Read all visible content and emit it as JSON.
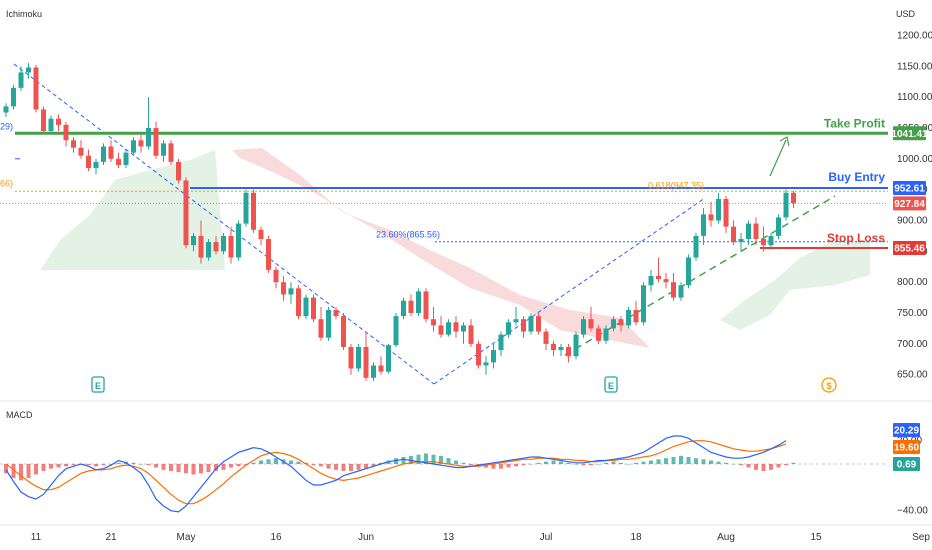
{
  "header": {
    "indicator": "Ichimoku",
    "currency": "USD"
  },
  "chart_data": {
    "type": "candlestick",
    "price_ticks": [
      "1200.00",
      "1150.00",
      "1100.00",
      "1050.00",
      "1000.00",
      "950.00",
      "900.00",
      "850.00",
      "800.00",
      "750.00",
      "700.00",
      "650.00"
    ],
    "price_tick_values": [
      1200,
      1150,
      1100,
      1050,
      1000,
      950,
      900,
      850,
      800,
      750,
      700,
      650
    ],
    "ylim": [
      622,
      1225
    ],
    "x_labels": [
      "11",
      "21",
      "May",
      "16",
      "Jun",
      "13",
      "Jul",
      "18",
      "Aug",
      "15",
      "Sep"
    ],
    "x_label_index": [
      4,
      14,
      24,
      36,
      48,
      59,
      72,
      84,
      96,
      108,
      122
    ],
    "candles": [
      [
        1075,
        1090,
        1068,
        1085
      ],
      [
        1085,
        1120,
        1080,
        1115
      ],
      [
        1115,
        1150,
        1110,
        1140
      ],
      [
        1140,
        1155,
        1130,
        1148
      ],
      [
        1148,
        1152,
        1075,
        1080
      ],
      [
        1080,
        1085,
        1040,
        1045
      ],
      [
        1045,
        1070,
        1040,
        1065
      ],
      [
        1065,
        1072,
        1045,
        1055
      ],
      [
        1055,
        1060,
        1020,
        1030
      ],
      [
        1030,
        1035,
        1010,
        1018
      ],
      [
        1018,
        1030,
        1000,
        1005
      ],
      [
        1005,
        1015,
        980,
        985
      ],
      [
        985,
        1000,
        975,
        995
      ],
      [
        995,
        1025,
        990,
        1020
      ],
      [
        1020,
        1030,
        995,
        1000
      ],
      [
        1000,
        1010,
        985,
        990
      ],
      [
        990,
        1015,
        985,
        1010
      ],
      [
        1010,
        1035,
        1005,
        1030
      ],
      [
        1030,
        1040,
        1010,
        1020
      ],
      [
        1020,
        1100,
        1015,
        1050
      ],
      [
        1050,
        1060,
        1000,
        1005
      ],
      [
        1005,
        1030,
        995,
        1025
      ],
      [
        1025,
        1030,
        990,
        995
      ],
      [
        995,
        1000,
        960,
        965
      ],
      [
        965,
        970,
        855,
        860
      ],
      [
        860,
        880,
        850,
        875
      ],
      [
        875,
        900,
        830,
        840
      ],
      [
        840,
        870,
        835,
        865
      ],
      [
        865,
        875,
        845,
        850
      ],
      [
        850,
        880,
        845,
        875
      ],
      [
        875,
        890,
        830,
        840
      ],
      [
        840,
        900,
        835,
        895
      ],
      [
        895,
        950,
        890,
        945
      ],
      [
        945,
        950,
        880,
        885
      ],
      [
        885,
        890,
        860,
        870
      ],
      [
        870,
        875,
        815,
        820
      ],
      [
        820,
        825,
        790,
        800
      ],
      [
        800,
        810,
        770,
        780
      ],
      [
        780,
        800,
        765,
        790
      ],
      [
        790,
        795,
        740,
        745
      ],
      [
        745,
        780,
        740,
        775
      ],
      [
        775,
        780,
        735,
        740
      ],
      [
        740,
        760,
        705,
        710
      ],
      [
        710,
        760,
        705,
        755
      ],
      [
        755,
        760,
        740,
        745
      ],
      [
        745,
        750,
        690,
        695
      ],
      [
        695,
        700,
        650,
        660
      ],
      [
        660,
        700,
        655,
        695
      ],
      [
        695,
        720,
        640,
        645
      ],
      [
        645,
        670,
        640,
        665
      ],
      [
        665,
        680,
        650,
        655
      ],
      [
        655,
        700,
        652,
        698
      ],
      [
        698,
        750,
        695,
        745
      ],
      [
        745,
        775,
        740,
        770
      ],
      [
        770,
        780,
        745,
        750
      ],
      [
        750,
        790,
        745,
        785
      ],
      [
        785,
        790,
        735,
        740
      ],
      [
        740,
        760,
        720,
        730
      ],
      [
        730,
        745,
        710,
        715
      ],
      [
        715,
        740,
        712,
        735
      ],
      [
        735,
        745,
        710,
        720
      ],
      [
        720,
        735,
        700,
        730
      ],
      [
        730,
        740,
        695,
        700
      ],
      [
        700,
        705,
        660,
        665
      ],
      [
        665,
        680,
        650,
        670
      ],
      [
        670,
        700,
        660,
        690
      ],
      [
        690,
        720,
        680,
        715
      ],
      [
        715,
        740,
        710,
        735
      ],
      [
        735,
        760,
        730,
        740
      ],
      [
        740,
        745,
        710,
        720
      ],
      [
        720,
        750,
        715,
        745
      ],
      [
        745,
        750,
        715,
        720
      ],
      [
        720,
        725,
        690,
        700
      ],
      [
        700,
        705,
        680,
        690
      ],
      [
        690,
        700,
        680,
        695
      ],
      [
        695,
        700,
        670,
        680
      ],
      [
        680,
        720,
        675,
        715
      ],
      [
        715,
        745,
        710,
        740
      ],
      [
        740,
        760,
        720,
        725
      ],
      [
        725,
        730,
        700,
        705
      ],
      [
        705,
        730,
        700,
        725
      ],
      [
        725,
        745,
        720,
        740
      ],
      [
        740,
        745,
        720,
        730
      ],
      [
        730,
        760,
        725,
        755
      ],
      [
        755,
        770,
        730,
        735
      ],
      [
        735,
        800,
        730,
        795
      ],
      [
        795,
        820,
        785,
        810
      ],
      [
        810,
        840,
        800,
        805
      ],
      [
        805,
        815,
        790,
        800
      ],
      [
        800,
        815,
        770,
        775
      ],
      [
        775,
        800,
        770,
        795
      ],
      [
        795,
        845,
        790,
        840
      ],
      [
        840,
        880,
        835,
        875
      ],
      [
        875,
        920,
        860,
        910
      ],
      [
        910,
        930,
        890,
        900
      ],
      [
        900,
        945,
        895,
        935
      ],
      [
        935,
        940,
        880,
        890
      ],
      [
        890,
        900,
        860,
        865
      ],
      [
        865,
        880,
        850,
        870
      ],
      [
        870,
        900,
        860,
        895
      ],
      [
        895,
        905,
        860,
        870
      ],
      [
        870,
        890,
        850,
        860
      ],
      [
        860,
        880,
        852,
        875
      ],
      [
        875,
        910,
        870,
        905
      ],
      [
        905,
        950,
        900,
        945
      ],
      [
        945,
        948,
        920,
        928
      ]
    ],
    "levels": {
      "take_profit": {
        "label": "Take Profit",
        "value": 1041.41,
        "tag": "1041.41"
      },
      "buy_entry": {
        "label": "Buy Entry",
        "value": 952.61,
        "tag": "952.61"
      },
      "stop_loss": {
        "label": "Stop Loss",
        "value": 855.46,
        "tag": "855.46"
      },
      "current": {
        "value": 927.84,
        "tag": "927.84"
      }
    },
    "fib": {
      "f618": {
        "label": "0.618(947.35)",
        "value": 947.35
      },
      "f236": {
        "label": "23.60%(865.56)",
        "value": 865.56
      }
    },
    "left_edge_labels": {
      "upper": "29)",
      "lower": "66)"
    },
    "event_markers": {
      "earnings": "E",
      "dividend": "$"
    },
    "macd": {
      "title": "MACD",
      "ticks": [
        "20.00",
        "−40.00"
      ],
      "tick_values": [
        20,
        -40
      ],
      "ylim": [
        -48,
        48
      ],
      "tags": {
        "macd": "20.29",
        "signal": "19.60",
        "hist": "0.69"
      },
      "macd_values": [
        20.29
      ],
      "signal_values": [
        19.6
      ],
      "hist_values": [
        0.69
      ]
    },
    "colors": {
      "up": "#26a69a",
      "down": "#ef5350",
      "take_profit": "#43a047",
      "buy_entry": "#2962ff",
      "stop_loss": "#e53935",
      "current": "#ef5350",
      "fib": "#2962ff",
      "fib618": "#ff9800",
      "cloud_red": "#f8d7d7",
      "cloud_green": "#dff0e0",
      "macd_line": "#2962ff",
      "signal_line": "#ff6d00"
    }
  }
}
